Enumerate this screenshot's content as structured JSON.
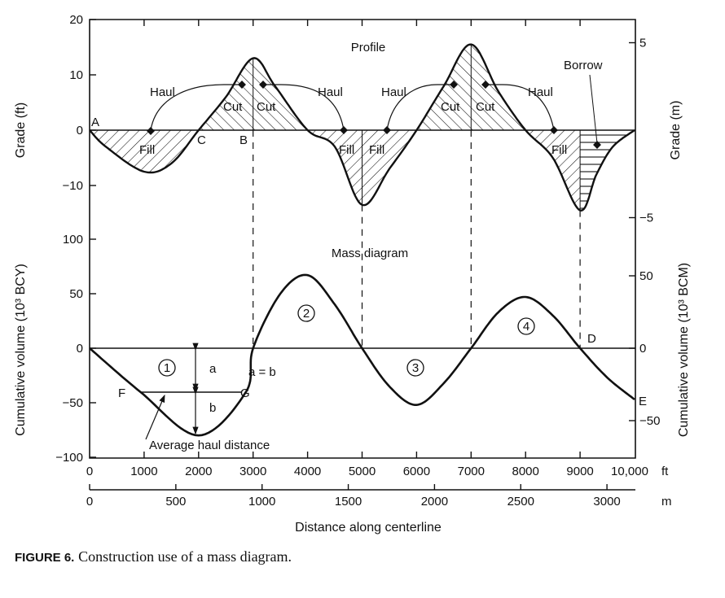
{
  "chart_data": [
    {
      "type": "line",
      "title": "Profile",
      "ylabel_left": "Grade (ft)",
      "ylabel_right": "Grade (m)",
      "ylim_left": [
        -20,
        20
      ],
      "yticks_left": [
        "20",
        "10",
        "0",
        "−10"
      ],
      "yticks_left_values": [
        20,
        10,
        0,
        -10
      ],
      "yticks_right": [
        "5",
        "−5"
      ],
      "yticks_right_values": [
        5,
        -5
      ],
      "x": [
        0,
        300,
        1000,
        1500,
        2000,
        2500,
        3000,
        3400,
        4000,
        4500,
        5000,
        5500,
        6000,
        6500,
        7000,
        7500,
        8000,
        8500,
        9000,
        9300,
        9600,
        10000
      ],
      "y": [
        0,
        -3,
        -7.5,
        -6,
        0,
        6,
        13,
        8,
        0,
        -3,
        -13.5,
        -7,
        0,
        8,
        15.5,
        7,
        0,
        -5,
        -14.5,
        -8,
        -3,
        0
      ],
      "annotations": {
        "A": "A",
        "B": "B",
        "C": "C",
        "haul": "Haul",
        "cut": "Cut",
        "fill": "Fill",
        "borrow": "Borrow"
      }
    },
    {
      "type": "line",
      "title": "Mass diagram",
      "ylabel_left": "Cumulative volume (10³ BCY)",
      "ylabel_right": "Cumulative volume (10³ BCM)",
      "ylim_left": [
        -100,
        100
      ],
      "yticks_left": [
        "100",
        "50",
        "0",
        "−50",
        "−100"
      ],
      "yticks_left_values": [
        100,
        50,
        0,
        -50,
        -100
      ],
      "yticks_right": [
        "50",
        "0",
        "−50"
      ],
      "yticks_right_values": [
        50,
        0,
        -50
      ],
      "x": [
        0,
        930,
        2000,
        2870,
        3000,
        3500,
        4000,
        4500,
        5000,
        5500,
        6000,
        6500,
        7000,
        7500,
        8000,
        8500,
        9000,
        9500,
        10000
      ],
      "y": [
        0,
        -40,
        -80,
        -40,
        0,
        50,
        67,
        40,
        0,
        -35,
        -52,
        -32,
        0,
        33,
        47,
        30,
        0,
        -27,
        -47
      ],
      "annotations": {
        "regions": [
          "1",
          "2",
          "3",
          "4"
        ],
        "a": "a",
        "b": "b",
        "a_eq_b": "a = b",
        "F": "F",
        "G": "G",
        "D": "D",
        "E": "E",
        "average_haul": "Average haul distance"
      }
    }
  ],
  "x_axis": {
    "label": "Distance along centerline",
    "ft_ticks": [
      "0",
      "1000",
      "2000",
      "3000",
      "4000",
      "5000",
      "6000",
      "7000",
      "8000",
      "9000",
      "10,000"
    ],
    "ft_values": [
      0,
      1000,
      2000,
      3000,
      4000,
      5000,
      6000,
      7000,
      8000,
      9000,
      10000
    ],
    "ft_unit": "ft",
    "m_ticks": [
      "0",
      "500",
      "1000",
      "1500",
      "2000",
      "2500",
      "3000"
    ],
    "m_values": [
      0,
      500,
      1000,
      1500,
      2000,
      2500,
      3000
    ],
    "m_unit": "m"
  },
  "caption": {
    "figure": "FIGURE 6.",
    "text": "Construction use of a mass diagram."
  }
}
